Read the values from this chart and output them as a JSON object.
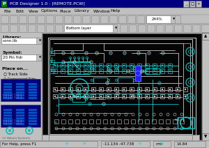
{
  "title": "PCB Designer 1.0 - [REMOTE.PCW]",
  "window_bg": "#c0c0c0",
  "pcb_bg": "#000000",
  "tc": "#00cccc",
  "tw": "#c8c8c8",
  "blue_sel": "#2020ff",
  "menu_items": [
    "File",
    "Edit",
    "View",
    "Options",
    "Place",
    "Library",
    "Window",
    "Help"
  ],
  "layer_text": "Bottom layer",
  "zoom_text": "244%",
  "library_val": "conn.lib",
  "symbol_val": "20 Pin Hdr",
  "status_text": "For Help, press F1",
  "coords_text": "-11.134 -47.738",
  "coords2": "14.84"
}
